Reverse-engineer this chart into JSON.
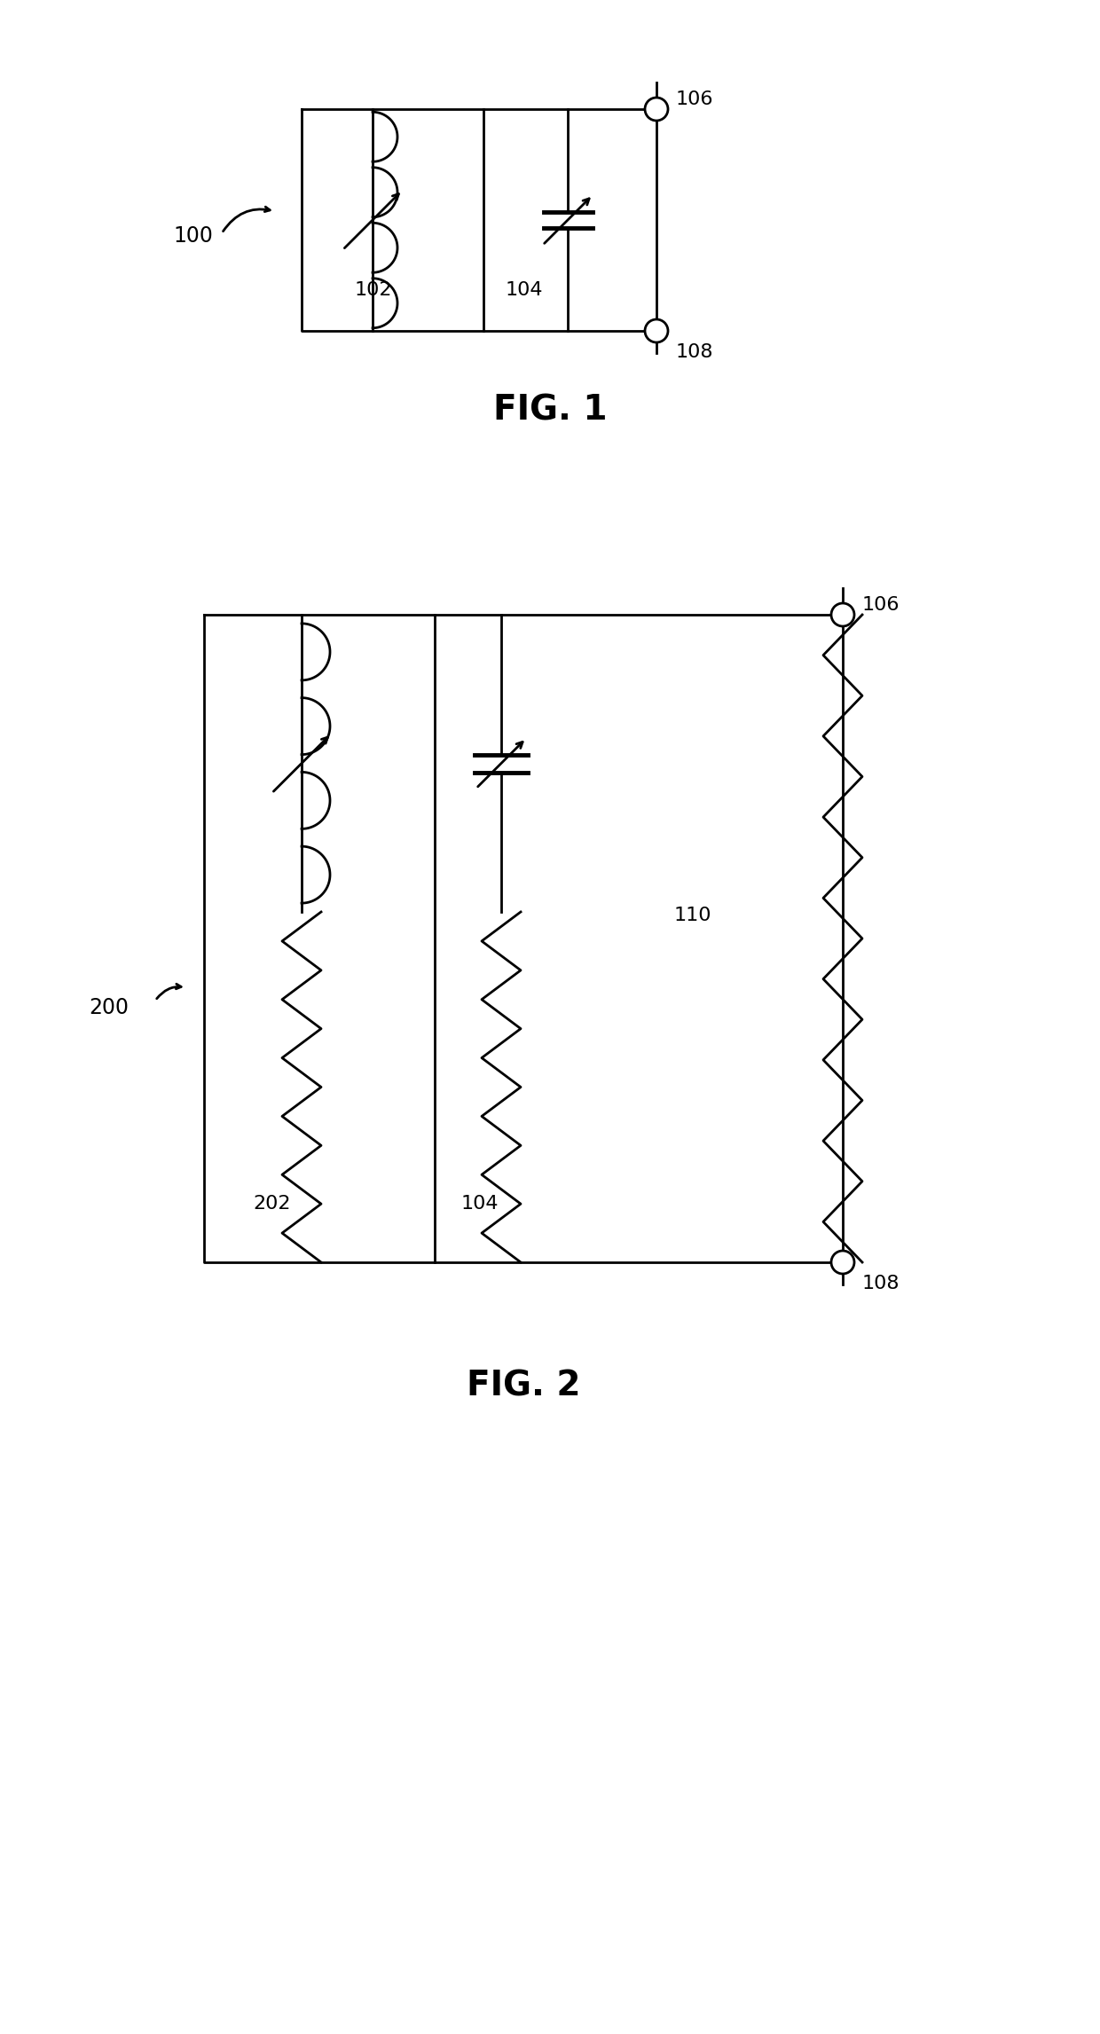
{
  "bg_color": "#ffffff",
  "line_color": "#000000",
  "lw": 2.0,
  "fig1_label": "FIG. 1",
  "fig2_label": "FIG. 2",
  "ref_100": "100",
  "ref_102": "102",
  "ref_104": "104",
  "ref_106": "106",
  "ref_108": "108",
  "ref_110": "110",
  "ref_200": "200",
  "ref_202": "202"
}
